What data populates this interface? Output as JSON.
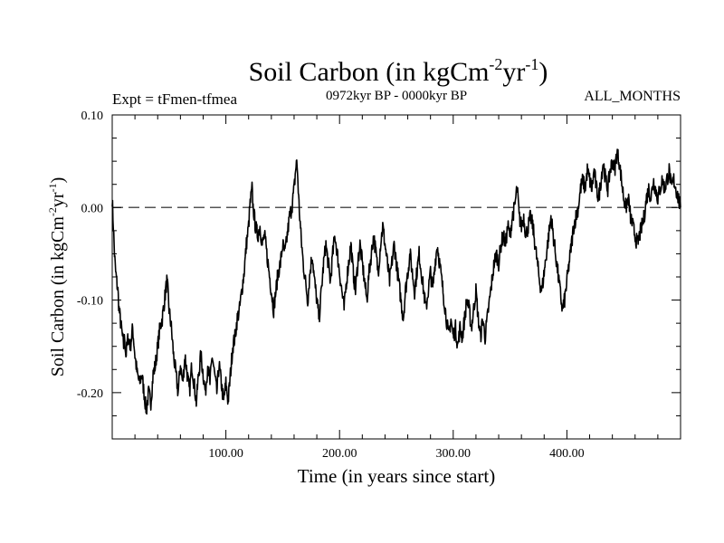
{
  "chart_data": {
    "type": "line",
    "title": "Soil Carbon (in kgCm",
    "title_sup1": "-2",
    "title_mid": "yr",
    "title_sup2": "-1",
    "title_end": ")",
    "expt_label": "Expt = tFmen-tfmea",
    "period_label": "0972kyr BP - 0000kyr BP",
    "months_label": "ALL_MONTHS",
    "xlabel": "Time (in years since start)",
    "ylabel": "Soil Carbon (in kgCm",
    "ylabel_sup1": "-2",
    "ylabel_mid": "yr",
    "ylabel_sup2": "-1",
    "ylabel_end": ")",
    "xlim": [
      0,
      500
    ],
    "ylim": [
      -0.25,
      0.1
    ],
    "x_ticks": [
      100,
      200,
      300,
      400
    ],
    "x_tick_labels": [
      "100.00",
      "200.00",
      "300.00",
      "400.00"
    ],
    "y_ticks": [
      0.1,
      0.0,
      -0.1,
      -0.2
    ],
    "y_tick_labels": [
      "0.10",
      "0.00",
      "-0.10",
      "-0.20"
    ],
    "reference_line": {
      "y": 0.0,
      "style": "dashed"
    },
    "series": [
      {
        "name": "Soil Carbon",
        "color": "#000000",
        "points": [
          [
            0,
            0.01
          ],
          [
            1,
            -0.02
          ],
          [
            2,
            -0.05
          ],
          [
            3,
            -0.07
          ],
          [
            4,
            -0.08
          ],
          [
            5,
            -0.09
          ],
          [
            6,
            -0.11
          ],
          [
            7,
            -0.12
          ],
          [
            8,
            -0.13
          ],
          [
            9,
            -0.14
          ],
          [
            10,
            -0.15
          ],
          [
            11,
            -0.14
          ],
          [
            12,
            -0.16
          ],
          [
            14,
            -0.14
          ],
          [
            16,
            -0.15
          ],
          [
            18,
            -0.13
          ],
          [
            20,
            -0.16
          ],
          [
            22,
            -0.18
          ],
          [
            24,
            -0.19
          ],
          [
            26,
            -0.18
          ],
          [
            28,
            -0.2
          ],
          [
            30,
            -0.22
          ],
          [
            32,
            -0.2
          ],
          [
            34,
            -0.21
          ],
          [
            36,
            -0.18
          ],
          [
            38,
            -0.17
          ],
          [
            40,
            -0.15
          ],
          [
            42,
            -0.13
          ],
          [
            44,
            -0.12
          ],
          [
            46,
            -0.1
          ],
          [
            47,
            -0.09
          ],
          [
            48,
            -0.08
          ],
          [
            49,
            -0.09
          ],
          [
            50,
            -0.11
          ],
          [
            52,
            -0.13
          ],
          [
            54,
            -0.16
          ],
          [
            56,
            -0.18
          ],
          [
            58,
            -0.2
          ],
          [
            60,
            -0.17
          ],
          [
            62,
            -0.19
          ],
          [
            64,
            -0.16
          ],
          [
            66,
            -0.18
          ],
          [
            68,
            -0.2
          ],
          [
            70,
            -0.17
          ],
          [
            72,
            -0.19
          ],
          [
            74,
            -0.21
          ],
          [
            76,
            -0.18
          ],
          [
            78,
            -0.16
          ],
          [
            80,
            -0.18
          ],
          [
            82,
            -0.2
          ],
          [
            84,
            -0.17
          ],
          [
            86,
            -0.19
          ],
          [
            88,
            -0.16
          ],
          [
            90,
            -0.18
          ],
          [
            92,
            -0.2
          ],
          [
            94,
            -0.17
          ],
          [
            96,
            -0.19
          ],
          [
            98,
            -0.21
          ],
          [
            100,
            -0.19
          ],
          [
            102,
            -0.21
          ],
          [
            104,
            -0.18
          ],
          [
            106,
            -0.15
          ],
          [
            108,
            -0.14
          ],
          [
            110,
            -0.12
          ],
          [
            112,
            -0.11
          ],
          [
            114,
            -0.09
          ],
          [
            116,
            -0.07
          ],
          [
            118,
            -0.04
          ],
          [
            120,
            -0.02
          ],
          [
            121,
            0.0
          ],
          [
            122,
            0.01
          ],
          [
            123,
            0.02
          ],
          [
            124,
            0.0
          ],
          [
            126,
            -0.02
          ],
          [
            128,
            -0.03
          ],
          [
            130,
            -0.02
          ],
          [
            132,
            -0.04
          ],
          [
            134,
            -0.03
          ],
          [
            136,
            -0.05
          ],
          [
            138,
            -0.07
          ],
          [
            140,
            -0.09
          ],
          [
            142,
            -0.11
          ],
          [
            144,
            -0.09
          ],
          [
            146,
            -0.07
          ],
          [
            148,
            -0.06
          ],
          [
            150,
            -0.04
          ],
          [
            152,
            -0.05
          ],
          [
            154,
            -0.03
          ],
          [
            156,
            -0.01
          ],
          [
            158,
            0.0
          ],
          [
            160,
            0.02
          ],
          [
            162,
            0.05
          ],
          [
            163,
            0.04
          ],
          [
            164,
            0.01
          ],
          [
            166,
            -0.03
          ],
          [
            168,
            -0.06
          ],
          [
            170,
            -0.08
          ],
          [
            172,
            -0.1
          ],
          [
            174,
            -0.07
          ],
          [
            176,
            -0.05
          ],
          [
            178,
            -0.08
          ],
          [
            180,
            -0.1
          ],
          [
            182,
            -0.12
          ],
          [
            184,
            -0.09
          ],
          [
            186,
            -0.06
          ],
          [
            188,
            -0.04
          ],
          [
            190,
            -0.06
          ],
          [
            192,
            -0.08
          ],
          [
            194,
            -0.05
          ],
          [
            196,
            -0.03
          ],
          [
            198,
            -0.05
          ],
          [
            200,
            -0.07
          ],
          [
            202,
            -0.09
          ],
          [
            204,
            -0.11
          ],
          [
            206,
            -0.08
          ],
          [
            208,
            -0.06
          ],
          [
            210,
            -0.04
          ],
          [
            212,
            -0.07
          ],
          [
            214,
            -0.09
          ],
          [
            216,
            -0.06
          ],
          [
            218,
            -0.04
          ],
          [
            220,
            -0.06
          ],
          [
            222,
            -0.08
          ],
          [
            224,
            -0.1
          ],
          [
            226,
            -0.07
          ],
          [
            228,
            -0.05
          ],
          [
            230,
            -0.03
          ],
          [
            232,
            -0.05
          ],
          [
            234,
            -0.07
          ],
          [
            236,
            -0.04
          ],
          [
            238,
            -0.02
          ],
          [
            240,
            -0.04
          ],
          [
            242,
            -0.06
          ],
          [
            244,
            -0.08
          ],
          [
            246,
            -0.06
          ],
          [
            248,
            -0.04
          ],
          [
            250,
            -0.06
          ],
          [
            252,
            -0.08
          ],
          [
            254,
            -0.1
          ],
          [
            256,
            -0.12
          ],
          [
            258,
            -0.09
          ],
          [
            260,
            -0.07
          ],
          [
            262,
            -0.05
          ],
          [
            264,
            -0.07
          ],
          [
            266,
            -0.09
          ],
          [
            268,
            -0.07
          ],
          [
            270,
            -0.05
          ],
          [
            272,
            -0.07
          ],
          [
            274,
            -0.09
          ],
          [
            276,
            -0.11
          ],
          [
            278,
            -0.09
          ],
          [
            280,
            -0.07
          ],
          [
            282,
            -0.09
          ],
          [
            284,
            -0.06
          ],
          [
            286,
            -0.04
          ],
          [
            288,
            -0.06
          ],
          [
            290,
            -0.08
          ],
          [
            292,
            -0.1
          ],
          [
            294,
            -0.12
          ],
          [
            296,
            -0.14
          ],
          [
            298,
            -0.12
          ],
          [
            300,
            -0.14
          ],
          [
            302,
            -0.13
          ],
          [
            304,
            -0.15
          ],
          [
            306,
            -0.13
          ],
          [
            308,
            -0.14
          ],
          [
            310,
            -0.12
          ],
          [
            312,
            -0.1
          ],
          [
            314,
            -0.11
          ],
          [
            316,
            -0.13
          ],
          [
            318,
            -0.11
          ],
          [
            320,
            -0.09
          ],
          [
            322,
            -0.12
          ],
          [
            324,
            -0.14
          ],
          [
            326,
            -0.12
          ],
          [
            328,
            -0.14
          ],
          [
            330,
            -0.12
          ],
          [
            332,
            -0.1
          ],
          [
            334,
            -0.08
          ],
          [
            336,
            -0.06
          ],
          [
            338,
            -0.05
          ],
          [
            340,
            -0.06
          ],
          [
            342,
            -0.04
          ],
          [
            344,
            -0.03
          ],
          [
            346,
            -0.04
          ],
          [
            348,
            -0.02
          ],
          [
            350,
            -0.03
          ],
          [
            352,
            -0.01
          ],
          [
            354,
            0.0
          ],
          [
            356,
            0.02
          ],
          [
            357,
            0.01
          ],
          [
            358,
            -0.01
          ],
          [
            360,
            -0.02
          ],
          [
            362,
            -0.01
          ],
          [
            364,
            -0.03
          ],
          [
            366,
            -0.02
          ],
          [
            368,
            -0.01
          ],
          [
            370,
            -0.02
          ],
          [
            372,
            -0.04
          ],
          [
            374,
            -0.06
          ],
          [
            376,
            -0.08
          ],
          [
            378,
            -0.09
          ],
          [
            380,
            -0.07
          ],
          [
            382,
            -0.05
          ],
          [
            384,
            -0.03
          ],
          [
            386,
            -0.01
          ],
          [
            388,
            -0.03
          ],
          [
            390,
            -0.05
          ],
          [
            392,
            -0.07
          ],
          [
            394,
            -0.09
          ],
          [
            396,
            -0.11
          ],
          [
            398,
            -0.1
          ],
          [
            400,
            -0.08
          ],
          [
            402,
            -0.06
          ],
          [
            404,
            -0.04
          ],
          [
            406,
            -0.02
          ],
          [
            408,
            -0.01
          ],
          [
            410,
            0.0
          ],
          [
            412,
            0.02
          ],
          [
            414,
            0.03
          ],
          [
            416,
            0.02
          ],
          [
            418,
            0.04
          ],
          [
            420,
            0.03
          ],
          [
            422,
            0.02
          ],
          [
            424,
            0.04
          ],
          [
            426,
            0.02
          ],
          [
            428,
            0.01
          ],
          [
            430,
            0.03
          ],
          [
            432,
            0.05
          ],
          [
            434,
            0.03
          ],
          [
            436,
            0.02
          ],
          [
            438,
            0.04
          ],
          [
            440,
            0.05
          ],
          [
            442,
            0.04
          ],
          [
            444,
            0.06
          ],
          [
            446,
            0.05
          ],
          [
            448,
            0.03
          ],
          [
            450,
            0.01
          ],
          [
            452,
            0.0
          ],
          [
            454,
            0.01
          ],
          [
            456,
            -0.01
          ],
          [
            458,
            -0.02
          ],
          [
            460,
            -0.03
          ],
          [
            462,
            -0.04
          ],
          [
            464,
            -0.03
          ],
          [
            466,
            -0.02
          ],
          [
            468,
            -0.01
          ],
          [
            470,
            0.01
          ],
          [
            472,
            0.02
          ],
          [
            474,
            0.01
          ],
          [
            476,
            0.03
          ],
          [
            478,
            0.02
          ],
          [
            480,
            0.01
          ],
          [
            482,
            0.02
          ],
          [
            484,
            0.03
          ],
          [
            486,
            0.02
          ],
          [
            488,
            0.03
          ],
          [
            490,
            0.04
          ],
          [
            492,
            0.02
          ],
          [
            494,
            0.03
          ],
          [
            496,
            0.02
          ],
          [
            498,
            0.01
          ],
          [
            500,
            0.0
          ]
        ]
      }
    ]
  }
}
